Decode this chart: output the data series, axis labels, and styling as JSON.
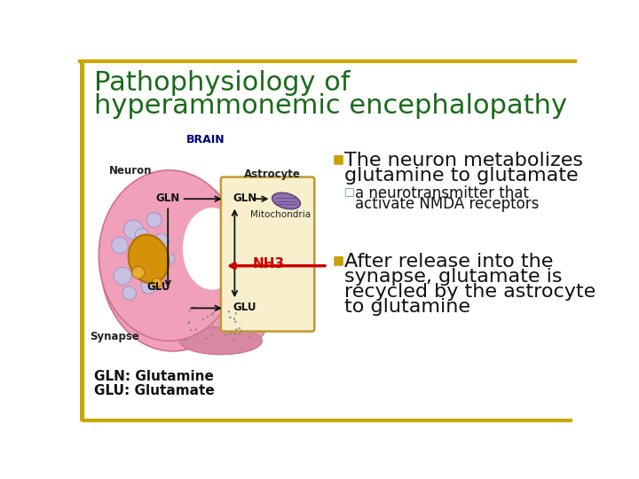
{
  "title_line1": "Pathophysiology of",
  "title_line2": "hyperammonemic encephalopathy",
  "title_color": "#1a6b1a",
  "title_fontsize": 22,
  "title_fontstyle": "normal",
  "background_color": "#ffffff",
  "border_color": "#c8a800",
  "bullet1_marker": "■",
  "bullet1_color": "#c8a000",
  "bullet1_text_line1": "The neuron metabolizes",
  "bullet1_text_line2": "glutamine to glutamate",
  "bullet1_fontsize": 16,
  "bullet1_text_color": "#111111",
  "sub_bullet_marker": "□",
  "sub_bullet_color": "#4aaa4a",
  "sub_bullet_text_line1": "a neurotransmitter that",
  "sub_bullet_text_line2": "  activate NMDA receptors",
  "sub_bullet_fontsize": 12,
  "sub_bullet_text_color": "#111111",
  "bullet2_marker": "■",
  "bullet2_color": "#c8a000",
  "bullet2_text_line1": "After release into the",
  "bullet2_text_line2": "synapse, glutamate is",
  "bullet2_text_line3": "recycled by the astrocyte",
  "bullet2_text_line4": "to glutamine",
  "bullet2_fontsize": 16,
  "bullet2_text_color": "#111111",
  "nh3_label_color": "#cc0000",
  "nh3_fontsize": 11,
  "footnote1": "GLN: Glutamine",
  "footnote2": "GLU: Glutamate",
  "footnote_fontsize": 11,
  "footnote_color": "#111111",
  "brain_label": "BRAIN",
  "neuron_label": "Neuron",
  "astrocyte_label": "Astrocyte",
  "mito_label": "Mitochondria",
  "synapse_label": "Synapse",
  "gln_label": "GLN",
  "glu_label": "GLU",
  "nh3_label": "NH3"
}
